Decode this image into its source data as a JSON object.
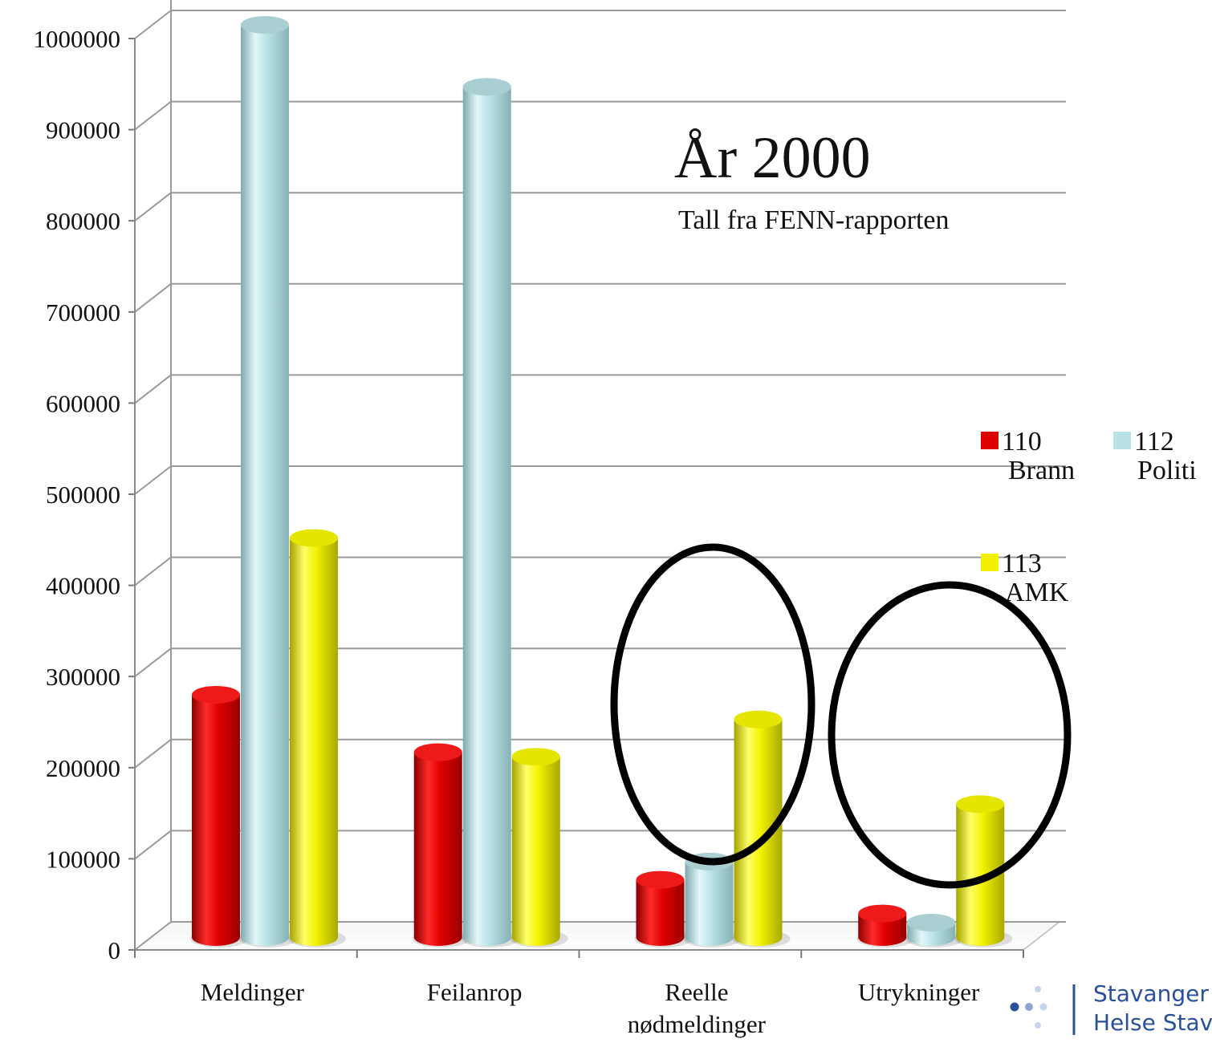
{
  "chart_data": {
    "type": "bar",
    "style": "3d-cylinder",
    "title": "År 2000",
    "subtitle": "Tall fra FENN-rapporten",
    "categories": [
      "Meldinger",
      "Feilanrop",
      "Reelle nødmeldinger",
      "Utrykninger"
    ],
    "series": [
      {
        "name": "110 Brann",
        "color": "#e00000",
        "values": [
          265000,
          202000,
          62000,
          25000
        ]
      },
      {
        "name": "112 Politi",
        "color": "#b8e2e6",
        "values": [
          1000000,
          932000,
          82000,
          15000
        ]
      },
      {
        "name": "113 AMK",
        "color": "#f2f200",
        "values": [
          437000,
          197000,
          238000,
          145000
        ]
      }
    ],
    "yticks": [
      "0",
      "100000",
      "200000",
      "300000",
      "400000",
      "500000",
      "600000",
      "700000",
      "800000",
      "900000",
      "1000000"
    ],
    "ylim": [
      0,
      1000000
    ],
    "grid": true,
    "legend_position": "right",
    "annotations": [
      "circle around Reelle nødmeldinger",
      "circle around Utrykninger"
    ]
  },
  "legend": {
    "brann_number": "110",
    "brann_label": "Brann",
    "politi_number": "112",
    "politi_label": "Politi",
    "amk_number": "113",
    "amk_label": "AMK"
  },
  "logo": {
    "line1": "Stavanger U",
    "line2": "Helse Stavar"
  }
}
